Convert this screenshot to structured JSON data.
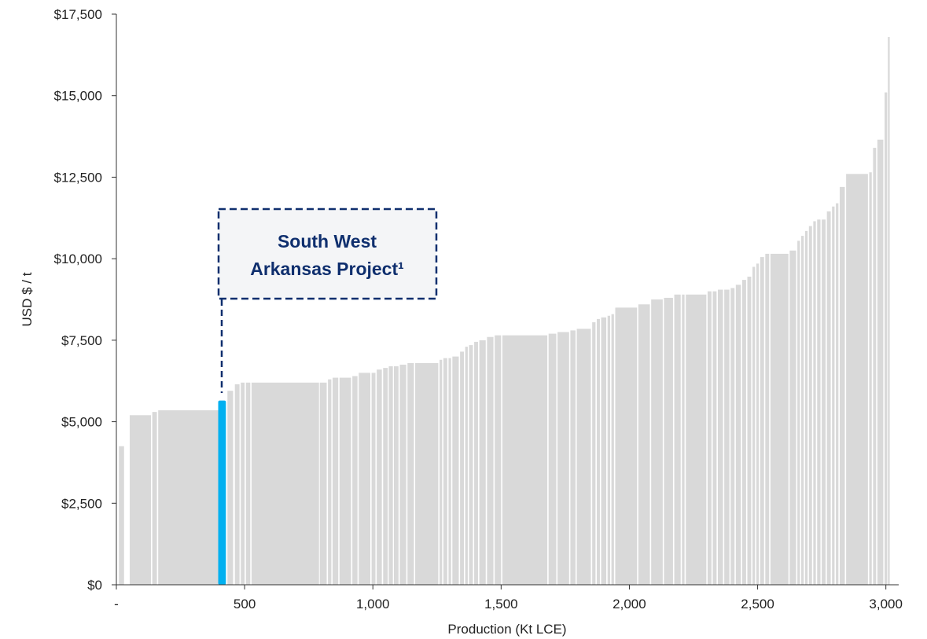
{
  "chart_data": {
    "type": "bar",
    "title": "",
    "xlabel": "Production (Kt LCE)",
    "ylabel": "USD $ / t",
    "xlim": [
      0,
      3050
    ],
    "ylim": [
      0,
      17500
    ],
    "x_ticks": [
      0,
      500,
      1000,
      1500,
      2000,
      2500,
      3000
    ],
    "x_tick_labels": [
      "-",
      "500",
      "1,000",
      "1,500",
      "2,000",
      "2,500",
      "3,000"
    ],
    "y_ticks": [
      0,
      2500,
      5000,
      7500,
      10000,
      12500,
      15000,
      17500
    ],
    "y_tick_labels": [
      "$0",
      "$2,500",
      "$5,000",
      "$7,500",
      "$10,000",
      "$12,500",
      "$15,000",
      "$17,500"
    ],
    "grid": false,
    "legend": "none",
    "colors": {
      "bar": "#d9d9d9",
      "highlight": "#00b0f0",
      "callout": "#0f2f6e",
      "callout_bg": "#f4f5f7"
    },
    "highlight": {
      "x_start": 397,
      "x_end": 427,
      "value": 5650
    },
    "annotation": {
      "line1": "South West",
      "line2": "Arkansas Project¹"
    },
    "bars": [
      [
        10,
        30,
        4250
      ],
      [
        52,
        135,
        5200
      ],
      [
        140,
        158,
        5300
      ],
      [
        163,
        397,
        5350
      ],
      [
        433,
        455,
        5950
      ],
      [
        462,
        480,
        6150
      ],
      [
        485,
        500,
        6200
      ],
      [
        505,
        522,
        6200
      ],
      [
        527,
        790,
        6200
      ],
      [
        793,
        820,
        6200
      ],
      [
        825,
        838,
        6300
      ],
      [
        843,
        865,
        6350
      ],
      [
        870,
        915,
        6350
      ],
      [
        920,
        940,
        6400
      ],
      [
        945,
        990,
        6500
      ],
      [
        995,
        1010,
        6500
      ],
      [
        1015,
        1035,
        6600
      ],
      [
        1040,
        1058,
        6650
      ],
      [
        1062,
        1078,
        6700
      ],
      [
        1082,
        1100,
        6700
      ],
      [
        1105,
        1130,
        6750
      ],
      [
        1135,
        1160,
        6800
      ],
      [
        1165,
        1255,
        6800
      ],
      [
        1260,
        1270,
        6900
      ],
      [
        1275,
        1290,
        6950
      ],
      [
        1295,
        1305,
        6950
      ],
      [
        1310,
        1335,
        7000
      ],
      [
        1340,
        1355,
        7150
      ],
      [
        1360,
        1370,
        7300
      ],
      [
        1375,
        1390,
        7350
      ],
      [
        1395,
        1410,
        7450
      ],
      [
        1415,
        1440,
        7500
      ],
      [
        1445,
        1470,
        7600
      ],
      [
        1475,
        1500,
        7650
      ],
      [
        1505,
        1680,
        7650
      ],
      [
        1685,
        1715,
        7700
      ],
      [
        1720,
        1765,
        7750
      ],
      [
        1770,
        1790,
        7800
      ],
      [
        1795,
        1850,
        7850
      ],
      [
        1855,
        1868,
        8050
      ],
      [
        1873,
        1885,
        8150
      ],
      [
        1890,
        1910,
        8200
      ],
      [
        1915,
        1925,
        8250
      ],
      [
        1930,
        1940,
        8300
      ],
      [
        1945,
        2030,
        8500
      ],
      [
        2035,
        2080,
        8600
      ],
      [
        2085,
        2130,
        8750
      ],
      [
        2135,
        2170,
        8800
      ],
      [
        2175,
        2200,
        8900
      ],
      [
        2205,
        2215,
        8900
      ],
      [
        2220,
        2300,
        8900
      ],
      [
        2305,
        2320,
        9000
      ],
      [
        2325,
        2340,
        9000
      ],
      [
        2345,
        2365,
        9050
      ],
      [
        2370,
        2390,
        9050
      ],
      [
        2395,
        2410,
        9100
      ],
      [
        2415,
        2435,
        9200
      ],
      [
        2440,
        2455,
        9350
      ],
      [
        2460,
        2475,
        9450
      ],
      [
        2480,
        2490,
        9750
      ],
      [
        2495,
        2505,
        9850
      ],
      [
        2510,
        2525,
        10050
      ],
      [
        2530,
        2545,
        10150
      ],
      [
        2550,
        2620,
        10150
      ],
      [
        2625,
        2650,
        10250
      ],
      [
        2655,
        2665,
        10550
      ],
      [
        2670,
        2680,
        10700
      ],
      [
        2685,
        2695,
        10850
      ],
      [
        2700,
        2712,
        11000
      ],
      [
        2717,
        2727,
        11150
      ],
      [
        2732,
        2745,
        11200
      ],
      [
        2750,
        2765,
        11200
      ],
      [
        2770,
        2785,
        11450
      ],
      [
        2790,
        2800,
        11600
      ],
      [
        2805,
        2815,
        11700
      ],
      [
        2820,
        2840,
        12200
      ],
      [
        2845,
        2930,
        12600
      ],
      [
        2935,
        2945,
        12650
      ],
      [
        2950,
        2962,
        13400
      ],
      [
        2967,
        2990,
        13650
      ],
      [
        2995,
        3005,
        15100
      ],
      [
        3008,
        3015,
        16800
      ]
    ]
  }
}
